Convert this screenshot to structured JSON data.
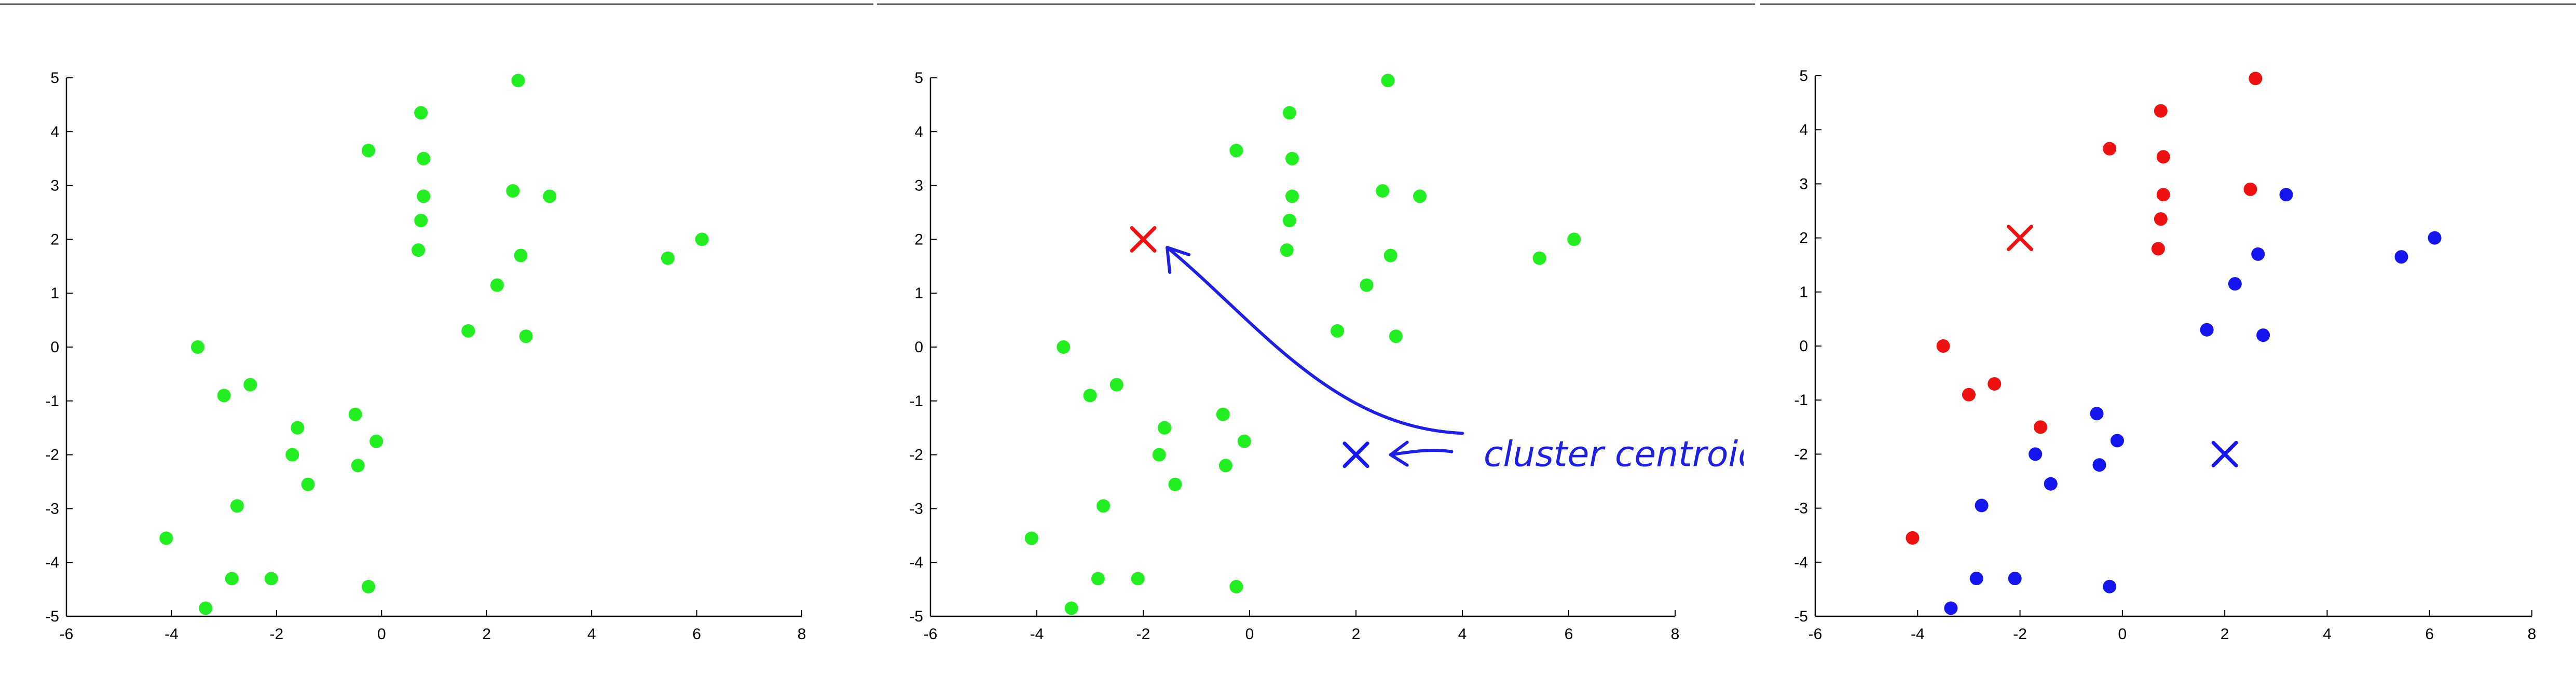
{
  "colors": {
    "green": "#22ee22",
    "red": "#ee1111",
    "blue": "#1515ee",
    "axis": "#000000",
    "annotation": "#1f1fe0"
  },
  "chart_data": [
    {
      "type": "scatter",
      "title": "",
      "xlabel": "",
      "ylabel": "",
      "xlim": [
        -6,
        8
      ],
      "ylim": [
        -5,
        5
      ],
      "xticks": [
        "-6",
        "-4",
        "-2",
        "0",
        "2",
        "4",
        "6",
        "8"
      ],
      "yticks": [
        "-5",
        "-4",
        "-3",
        "-2",
        "-1",
        "0",
        "1",
        "2",
        "3",
        "4",
        "5"
      ],
      "grid": false,
      "series": [
        {
          "color": "#22ee22",
          "points": [
            [
              -3.5,
              0.0
            ],
            [
              -3.0,
              -0.9
            ],
            [
              -2.5,
              -0.7
            ],
            [
              -1.6,
              -1.5
            ],
            [
              -1.7,
              -2.0
            ],
            [
              -1.4,
              -2.55
            ],
            [
              -2.75,
              -2.95
            ],
            [
              -4.1,
              -3.55
            ],
            [
              -2.85,
              -4.3
            ],
            [
              -2.1,
              -4.3
            ],
            [
              -3.35,
              -4.85
            ],
            [
              -0.5,
              -1.25
            ],
            [
              -0.45,
              -2.2
            ],
            [
              -0.1,
              -1.75
            ],
            [
              -0.25,
              -4.45
            ],
            [
              -0.25,
              3.65
            ],
            [
              0.75,
              4.35
            ],
            [
              0.8,
              3.5
            ],
            [
              0.8,
              2.8
            ],
            [
              0.75,
              2.35
            ],
            [
              0.7,
              1.8
            ],
            [
              2.6,
              4.95
            ],
            [
              2.5,
              2.9
            ],
            [
              3.2,
              2.8
            ],
            [
              2.65,
              1.7
            ],
            [
              2.2,
              1.15
            ],
            [
              1.65,
              0.3
            ],
            [
              2.75,
              0.2
            ],
            [
              5.45,
              1.65
            ],
            [
              6.1,
              2.0
            ]
          ]
        }
      ]
    },
    {
      "type": "scatter",
      "title": "",
      "xlabel": "",
      "ylabel": "",
      "xlim": [
        -6,
        8
      ],
      "ylim": [
        -5,
        5
      ],
      "xticks": [
        "-6",
        "-4",
        "-2",
        "0",
        "2",
        "4",
        "6",
        "8"
      ],
      "yticks": [
        "-5",
        "-4",
        "-3",
        "-2",
        "-1",
        "0",
        "1",
        "2",
        "3",
        "4",
        "5"
      ],
      "grid": false,
      "series": [
        {
          "color": "#22ee22",
          "points": [
            [
              -3.5,
              0.0
            ],
            [
              -3.0,
              -0.9
            ],
            [
              -2.5,
              -0.7
            ],
            [
              -1.6,
              -1.5
            ],
            [
              -1.7,
              -2.0
            ],
            [
              -1.4,
              -2.55
            ],
            [
              -2.75,
              -2.95
            ],
            [
              -4.1,
              -3.55
            ],
            [
              -2.85,
              -4.3
            ],
            [
              -2.1,
              -4.3
            ],
            [
              -3.35,
              -4.85
            ],
            [
              -0.5,
              -1.25
            ],
            [
              -0.45,
              -2.2
            ],
            [
              -0.1,
              -1.75
            ],
            [
              -0.25,
              -4.45
            ],
            [
              -0.25,
              3.65
            ],
            [
              0.75,
              4.35
            ],
            [
              0.8,
              3.5
            ],
            [
              0.8,
              2.8
            ],
            [
              0.75,
              2.35
            ],
            [
              0.7,
              1.8
            ],
            [
              2.6,
              4.95
            ],
            [
              2.5,
              2.9
            ],
            [
              3.2,
              2.8
            ],
            [
              2.65,
              1.7
            ],
            [
              2.2,
              1.15
            ],
            [
              1.65,
              0.3
            ],
            [
              2.75,
              0.2
            ],
            [
              5.45,
              1.65
            ],
            [
              6.1,
              2.0
            ]
          ]
        }
      ],
      "centroids": [
        {
          "x": -2,
          "y": 2,
          "color": "#ee1111"
        },
        {
          "x": 2,
          "y": -2,
          "color": "#1515ee"
        }
      ],
      "annotation": {
        "text": "cluster centroids",
        "arrow_from": [
          4.0,
          -1.6
        ],
        "arrow_to": [
          -1.55,
          1.85
        ],
        "arrow2_from": [
          3.8,
          -2.0
        ],
        "arrow2_to": [
          2.65,
          -2.0
        ]
      }
    },
    {
      "type": "scatter",
      "title": "",
      "xlabel": "",
      "ylabel": "",
      "xlim": [
        -6,
        8
      ],
      "ylim": [
        -5,
        5
      ],
      "xticks": [
        "-6",
        "-4",
        "-2",
        "0",
        "2",
        "4",
        "6",
        "8"
      ],
      "yticks": [
        "-5",
        "-4",
        "-3",
        "-2",
        "-1",
        "0",
        "1",
        "2",
        "3",
        "4",
        "5"
      ],
      "grid": false,
      "series": [
        {
          "color": "#ee1111",
          "points": [
            [
              -3.5,
              0.0
            ],
            [
              -3.0,
              -0.9
            ],
            [
              -2.5,
              -0.7
            ],
            [
              -1.6,
              -1.5
            ],
            [
              -4.1,
              -3.55
            ],
            [
              -0.25,
              3.65
            ],
            [
              0.75,
              4.35
            ],
            [
              0.8,
              3.5
            ],
            [
              0.8,
              2.8
            ],
            [
              0.75,
              2.35
            ],
            [
              0.7,
              1.8
            ],
            [
              2.6,
              4.95
            ],
            [
              2.5,
              2.9
            ]
          ]
        },
        {
          "color": "#1515ee",
          "points": [
            [
              -1.7,
              -2.0
            ],
            [
              -1.4,
              -2.55
            ],
            [
              -2.75,
              -2.95
            ],
            [
              -2.85,
              -4.3
            ],
            [
              -2.1,
              -4.3
            ],
            [
              -3.35,
              -4.85
            ],
            [
              -0.5,
              -1.25
            ],
            [
              -0.45,
              -2.2
            ],
            [
              -0.1,
              -1.75
            ],
            [
              -0.25,
              -4.45
            ],
            [
              3.2,
              2.8
            ],
            [
              2.65,
              1.7
            ],
            [
              2.2,
              1.15
            ],
            [
              1.65,
              0.3
            ],
            [
              2.75,
              0.2
            ],
            [
              5.45,
              1.65
            ],
            [
              6.1,
              2.0
            ]
          ]
        }
      ],
      "centroids": [
        {
          "x": -2,
          "y": 2,
          "color": "#ee1111"
        },
        {
          "x": 2,
          "y": -2,
          "color": "#1515ee"
        }
      ]
    }
  ]
}
